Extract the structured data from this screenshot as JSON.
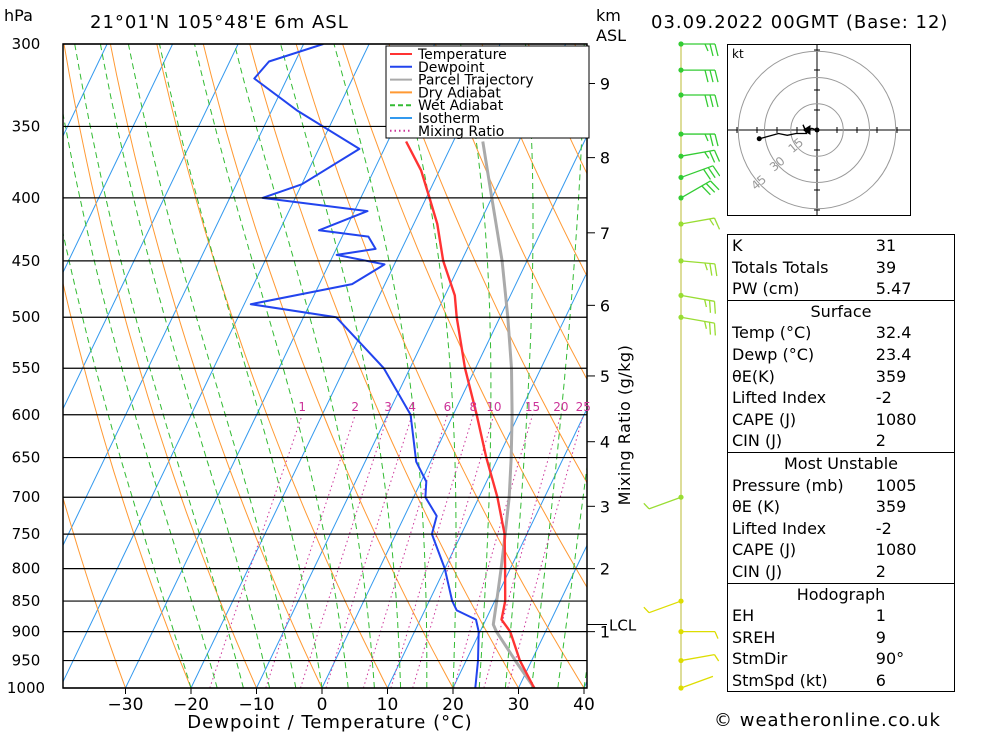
{
  "header": {
    "pressure_unit": "hPa",
    "location": "21°01'N  105°48'E  6m  ASL",
    "height_unit_1": "km",
    "height_unit_2": "ASL",
    "datetime": "03.09.2022  00GMT  (Base: 12)"
  },
  "footer": {
    "copyright": "© weatheronline.co.uk"
  },
  "chart_data": {
    "type": "skew-t log-p",
    "xlabel": "Dewpoint / Temperature (°C)",
    "ylabel": "",
    "secondary_ylabel": "Mixing Ratio (g/kg)",
    "x_ticks": [
      -30,
      -20,
      -10,
      0,
      10,
      20,
      30,
      40
    ],
    "pressure_levels": [
      300,
      350,
      400,
      450,
      500,
      550,
      600,
      650,
      700,
      750,
      800,
      850,
      900,
      950,
      1000
    ],
    "height_ticks_km": [
      {
        "label": "9",
        "p": 323
      },
      {
        "label": "8",
        "p": 371
      },
      {
        "label": "7",
        "p": 427
      },
      {
        "label": "6",
        "p": 489
      },
      {
        "label": "5",
        "p": 558
      },
      {
        "label": "4",
        "p": 631
      },
      {
        "label": "3",
        "p": 712
      },
      {
        "label": "2",
        "p": 800
      },
      {
        "label": "1",
        "p": 900
      }
    ],
    "lcl": {
      "label": "LCL",
      "p": 888
    },
    "mixing_ratio_labels": [
      "1",
      "2",
      "3",
      "4",
      "6",
      "8",
      "10",
      "15",
      "20",
      "25"
    ],
    "legend": {
      "placement": "top-right",
      "entries": [
        {
          "name": "Temperature",
          "color": "#ff3333"
        },
        {
          "name": "Dewpoint",
          "color": "#2244ee"
        },
        {
          "name": "Parcel Trajectory",
          "color": "#aaaaaa"
        },
        {
          "name": "Dry Adiabat",
          "color": "#ff9933"
        },
        {
          "name": "Wet Adiabat",
          "color": "#33bb33"
        },
        {
          "name": "Isotherm",
          "color": "#3399ee"
        },
        {
          "name": "Mixing Ratio",
          "color": "#cc3399"
        }
      ]
    },
    "temperature": [
      {
        "p": 1000,
        "t": 32.4
      },
      {
        "p": 950,
        "t": 28.2
      },
      {
        "p": 900,
        "t": 24.6
      },
      {
        "p": 880,
        "t": 22.4
      },
      {
        "p": 850,
        "t": 21.6
      },
      {
        "p": 800,
        "t": 19.2
      },
      {
        "p": 750,
        "t": 16.6
      },
      {
        "p": 700,
        "t": 12.8
      },
      {
        "p": 650,
        "t": 8.2
      },
      {
        "p": 600,
        "t": 3.6
      },
      {
        "p": 550,
        "t": -1.6
      },
      {
        "p": 500,
        "t": -6.6
      },
      {
        "p": 480,
        "t": -8.5
      },
      {
        "p": 450,
        "t": -12.8
      },
      {
        "p": 420,
        "t": -16.4
      },
      {
        "p": 400,
        "t": -19.5
      },
      {
        "p": 380,
        "t": -22.8
      },
      {
        "p": 360,
        "t": -27.2
      }
    ],
    "dewpoint": [
      {
        "p": 1000,
        "t": 23.4
      },
      {
        "p": 950,
        "t": 21.8
      },
      {
        "p": 900,
        "t": 19.8
      },
      {
        "p": 880,
        "t": 18.5
      },
      {
        "p": 865,
        "t": 14.9
      },
      {
        "p": 850,
        "t": 13.5
      },
      {
        "p": 800,
        "t": 10.0
      },
      {
        "p": 750,
        "t": 5.5
      },
      {
        "p": 725,
        "t": 4.9
      },
      {
        "p": 700,
        "t": 1.8
      },
      {
        "p": 680,
        "t": 0.8
      },
      {
        "p": 655,
        "t": -2.2
      },
      {
        "p": 600,
        "t": -6.5
      },
      {
        "p": 550,
        "t": -14.0
      },
      {
        "p": 500,
        "t": -25.0
      },
      {
        "p": 488,
        "t": -39.0
      },
      {
        "p": 470,
        "t": -25.0
      },
      {
        "p": 453,
        "t": -21.5
      },
      {
        "p": 445,
        "t": -29.5
      },
      {
        "p": 440,
        "t": -24.0
      },
      {
        "p": 430,
        "t": -26.0
      },
      {
        "p": 425,
        "t": -34.0
      },
      {
        "p": 410,
        "t": -28.0
      },
      {
        "p": 400,
        "t": -45.0
      },
      {
        "p": 390,
        "t": -40.0
      },
      {
        "p": 365,
        "t": -33.8
      },
      {
        "p": 340,
        "t": -46.0
      },
      {
        "p": 320,
        "t": -55.0
      },
      {
        "p": 310,
        "t": -54.0
      },
      {
        "p": 300,
        "t": -47.0
      }
    ],
    "parcel": [
      {
        "p": 1000,
        "t": 32.4
      },
      {
        "p": 950,
        "t": 27.5
      },
      {
        "p": 900,
        "t": 22.5
      },
      {
        "p": 888,
        "t": 21.5
      },
      {
        "p": 850,
        "t": 20.3
      },
      {
        "p": 800,
        "t": 18.6
      },
      {
        "p": 750,
        "t": 16.7
      },
      {
        "p": 700,
        "t": 14.6
      },
      {
        "p": 650,
        "t": 12.0
      },
      {
        "p": 600,
        "t": 9.0
      },
      {
        "p": 550,
        "t": 5.5
      },
      {
        "p": 500,
        "t": 1.2
      },
      {
        "p": 450,
        "t": -3.8
      },
      {
        "p": 400,
        "t": -10.0
      },
      {
        "p": 360,
        "t": -15.5
      }
    ],
    "wind_barbs": [
      {
        "p": 1000,
        "dir": 70,
        "kt": 3
      },
      {
        "p": 950,
        "dir": 80,
        "kt": 5
      },
      {
        "p": 900,
        "dir": 90,
        "kt": 5
      },
      {
        "p": 850,
        "dir": 250,
        "kt": 5
      },
      {
        "p": 700,
        "dir": 250,
        "kt": 5
      },
      {
        "p": 500,
        "dir": 100,
        "kt": 25
      },
      {
        "p": 480,
        "dir": 100,
        "kt": 25
      },
      {
        "p": 450,
        "dir": 95,
        "kt": 25
      },
      {
        "p": 420,
        "dir": 80,
        "kt": 15
      },
      {
        "p": 400,
        "dir": 60,
        "kt": 30
      },
      {
        "p": 385,
        "dir": 70,
        "kt": 30
      },
      {
        "p": 370,
        "dir": 80,
        "kt": 25
      },
      {
        "p": 355,
        "dir": 90,
        "kt": 25
      },
      {
        "p": 330,
        "dir": 90,
        "kt": 30
      },
      {
        "p": 315,
        "dir": 90,
        "kt": 30
      },
      {
        "p": 300,
        "dir": 90,
        "kt": 25
      }
    ]
  },
  "hodograph": {
    "unit": "kt",
    "ring_labels": [
      "15",
      "30",
      "45"
    ],
    "trace": [
      [
        0,
        0
      ],
      [
        -3,
        1
      ],
      [
        -5,
        0
      ],
      [
        -6,
        -1
      ],
      [
        -8,
        3
      ],
      [
        -6,
        -2
      ],
      [
        -12,
        -2
      ],
      [
        -17,
        -3
      ],
      [
        -22,
        -2
      ],
      [
        -33,
        -5
      ]
    ],
    "storm_motion": [
      -6,
      0
    ]
  },
  "indices": {
    "rows1": [
      {
        "k": "K",
        "v": "31"
      },
      {
        "k": "Totals Totals",
        "v": "39"
      },
      {
        "k": "PW (cm)",
        "v": "5.47"
      }
    ],
    "surface_title": "Surface",
    "surface": [
      {
        "k": "Temp (°C)",
        "v": "32.4"
      },
      {
        "k": "Dewp (°C)",
        "v": "23.4"
      },
      {
        "k": "θE(K)",
        "v": "359"
      },
      {
        "k": "Lifted Index",
        "v": "-2"
      },
      {
        "k": "CAPE (J)",
        "v": "1080"
      },
      {
        "k": "CIN (J)",
        "v": "2"
      }
    ],
    "mu_title": "Most Unstable",
    "mu": [
      {
        "k": "Pressure (mb)",
        "v": "1005"
      },
      {
        "k": "θE (K)",
        "v": "359"
      },
      {
        "k": "Lifted Index",
        "v": "-2"
      },
      {
        "k": "CAPE (J)",
        "v": "1080"
      },
      {
        "k": "CIN (J)",
        "v": "2"
      }
    ],
    "hodo_title": "Hodograph",
    "hodo": [
      {
        "k": "EH",
        "v": "1"
      },
      {
        "k": "SREH",
        "v": "9"
      },
      {
        "k": "StmDir",
        "v": "90°"
      },
      {
        "k": "StmSpd (kt)",
        "v": "6"
      }
    ]
  }
}
